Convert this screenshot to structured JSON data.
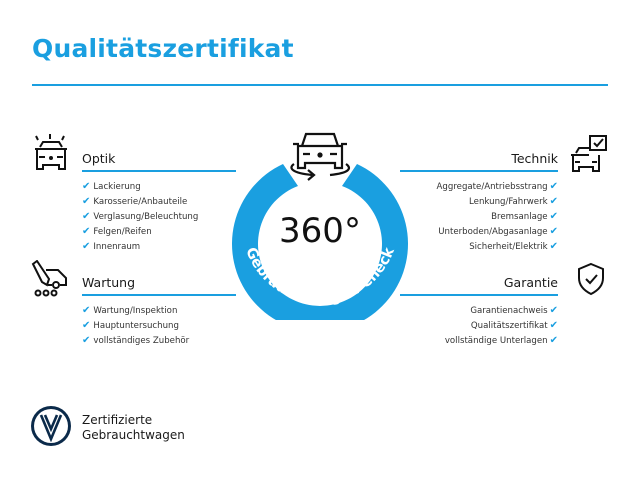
{
  "title": "Qualitätszertifikat",
  "accent_color": "#1a9fe0",
  "center": {
    "big": "360°",
    "arc_text": "Gebrauchtwagen-Check",
    "icon": "car-rotate-icon"
  },
  "sections": {
    "optik": {
      "title": "Optik",
      "icon": "car-lights-icon",
      "items": [
        "Lackierung",
        "Karosserie/Anbauteile",
        "Verglasung/Beleuchtung",
        "Felgen/Reifen",
        "Innenraum"
      ]
    },
    "wartung": {
      "title": "Wartung",
      "icon": "service-van-icon",
      "items": [
        "Wartung/Inspektion",
        "Hauptuntersuchung",
        "vollständiges Zubehör"
      ]
    },
    "technik": {
      "title": "Technik",
      "icon": "car-checklist-icon",
      "items": [
        "Aggregate/Antriebsstrang",
        "Lenkung/Fahrwerk",
        "Bremsanlage",
        "Unterboden/Abgasanlage",
        "Sicherheit/Elektrik"
      ]
    },
    "garantie": {
      "title": "Garantie",
      "icon": "shield-check-icon",
      "items": [
        "Garantienachweis",
        "Qualitätszertifikat",
        "vollständige Unterlagen"
      ]
    }
  },
  "check_mark": "✔",
  "brand": {
    "line1": "Zertifizierte",
    "line2": "Gebrauchtwagen",
    "logo": "vw-logo"
  }
}
